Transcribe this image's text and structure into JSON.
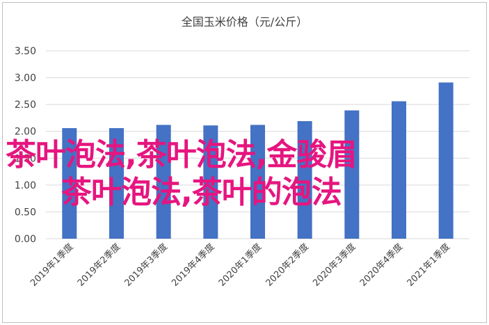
{
  "chart_data": {
    "type": "bar",
    "title": "全国玉米价格（元/公斤）",
    "categories": [
      "2019年1季度",
      "2019年2季度",
      "2019年3季度",
      "2019年4季度",
      "2020年1季度",
      "2020年2季度",
      "2020年3季度",
      "2020年4季度",
      "2021年1季度"
    ],
    "series": [
      {
        "values": [
          2.06,
          2.06,
          2.12,
          2.11,
          2.12,
          2.19,
          2.39,
          2.56,
          2.91
        ]
      }
    ],
    "yticks": [
      "0.00",
      "0.50",
      "1.00",
      "1.50",
      "2.00",
      "2.50",
      "3.00",
      "3.50"
    ],
    "ylim": [
      0,
      3.5
    ],
    "grid": true,
    "bar_color": "#4472c4"
  },
  "overlay": {
    "line1": "茶叶泡法,茶叶泡法,金骏眉",
    "line2": "茶叶泡法,茶叶的泡法",
    "color": "#e6157f"
  }
}
